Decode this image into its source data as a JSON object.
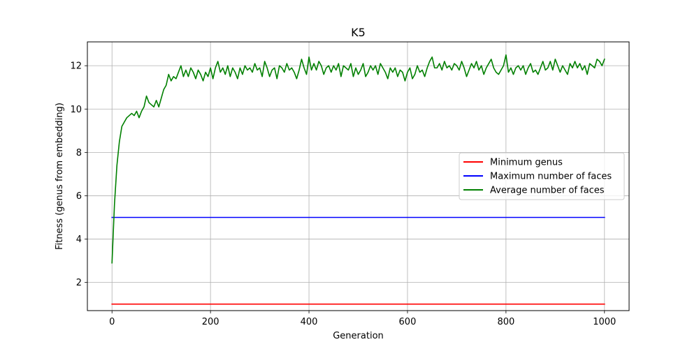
{
  "chart_data": {
    "type": "line",
    "title": "K5",
    "xlabel": "Generation",
    "ylabel": "Fitness (genus from embedding)",
    "xlim": [
      -50,
      1050
    ],
    "ylim": [
      0.7,
      13.1
    ],
    "xticks": [
      0,
      200,
      400,
      600,
      800,
      1000
    ],
    "yticks": [
      2,
      4,
      6,
      8,
      10,
      12
    ],
    "grid": true,
    "legend_position": "center-right",
    "series": [
      {
        "name": "Minimum genus",
        "color": "#ff0000",
        "x": [
          0,
          1000
        ],
        "y": [
          1,
          1
        ]
      },
      {
        "name": "Maximum number of faces",
        "color": "#0000ff",
        "x": [
          0,
          1000
        ],
        "y": [
          5,
          5
        ]
      },
      {
        "name": "Average number of faces",
        "color": "#008000",
        "x": [
          0,
          5,
          10,
          15,
          20,
          25,
          30,
          35,
          40,
          45,
          50,
          55,
          60,
          65,
          70,
          75,
          80,
          85,
          90,
          95,
          100,
          105,
          110,
          115,
          120,
          125,
          130,
          135,
          140,
          145,
          150,
          155,
          160,
          165,
          170,
          175,
          180,
          185,
          190,
          195,
          200,
          205,
          210,
          215,
          220,
          225,
          230,
          235,
          240,
          245,
          250,
          255,
          260,
          265,
          270,
          275,
          280,
          285,
          290,
          295,
          300,
          305,
          310,
          315,
          320,
          325,
          330,
          335,
          340,
          345,
          350,
          355,
          360,
          365,
          370,
          375,
          380,
          385,
          390,
          395,
          400,
          405,
          410,
          415,
          420,
          425,
          430,
          435,
          440,
          445,
          450,
          455,
          460,
          465,
          470,
          475,
          480,
          485,
          490,
          495,
          500,
          505,
          510,
          515,
          520,
          525,
          530,
          535,
          540,
          545,
          550,
          555,
          560,
          565,
          570,
          575,
          580,
          585,
          590,
          595,
          600,
          605,
          610,
          615,
          620,
          625,
          630,
          635,
          640,
          645,
          650,
          655,
          660,
          665,
          670,
          675,
          680,
          685,
          690,
          695,
          700,
          705,
          710,
          715,
          720,
          725,
          730,
          735,
          740,
          745,
          750,
          755,
          760,
          765,
          770,
          775,
          780,
          785,
          790,
          795,
          800,
          805,
          810,
          815,
          820,
          825,
          830,
          835,
          840,
          845,
          850,
          855,
          860,
          865,
          870,
          875,
          880,
          885,
          890,
          895,
          900,
          905,
          910,
          915,
          920,
          925,
          930,
          935,
          940,
          945,
          950,
          955,
          960,
          965,
          970,
          975,
          980,
          985,
          990,
          995,
          1000
        ],
        "y": [
          2.9,
          5.6,
          7.4,
          8.5,
          9.2,
          9.4,
          9.6,
          9.7,
          9.8,
          9.7,
          9.9,
          9.6,
          9.9,
          10.1,
          10.6,
          10.3,
          10.2,
          10.1,
          10.4,
          10.1,
          10.5,
          10.9,
          11.1,
          11.6,
          11.3,
          11.5,
          11.4,
          11.7,
          12.0,
          11.5,
          11.8,
          11.5,
          11.9,
          11.7,
          11.4,
          11.8,
          11.6,
          11.3,
          11.7,
          11.5,
          11.9,
          11.4,
          11.9,
          12.2,
          11.7,
          11.9,
          11.6,
          12.0,
          11.5,
          11.9,
          11.7,
          11.4,
          11.9,
          11.6,
          12.0,
          11.8,
          11.9,
          11.7,
          12.1,
          11.8,
          11.9,
          11.5,
          12.2,
          11.9,
          11.5,
          11.8,
          11.9,
          11.4,
          12.0,
          11.9,
          11.7,
          12.1,
          11.8,
          11.9,
          11.7,
          11.4,
          11.8,
          12.3,
          11.9,
          11.6,
          12.4,
          11.8,
          12.1,
          11.8,
          12.2,
          12.0,
          11.6,
          11.9,
          12.0,
          11.7,
          12.0,
          11.8,
          12.1,
          11.5,
          12.0,
          11.9,
          11.8,
          12.1,
          11.5,
          11.9,
          11.6,
          11.8,
          12.1,
          11.5,
          11.7,
          12.0,
          11.8,
          12.0,
          11.6,
          12.1,
          11.9,
          11.7,
          11.4,
          11.9,
          11.7,
          11.9,
          11.5,
          11.8,
          11.7,
          11.3,
          11.7,
          11.9,
          11.4,
          11.6,
          12.0,
          11.7,
          11.8,
          11.5,
          11.9,
          12.2,
          12.4,
          11.9,
          11.9,
          12.1,
          11.8,
          12.2,
          11.9,
          12.0,
          11.8,
          12.1,
          12.0,
          11.8,
          12.2,
          11.9,
          11.5,
          11.8,
          12.1,
          11.9,
          12.2,
          11.8,
          12.0,
          11.6,
          11.9,
          12.1,
          12.3,
          11.9,
          11.7,
          11.6,
          11.8,
          12.0,
          12.5,
          11.7,
          11.9,
          11.6,
          11.9,
          12.0,
          11.8,
          12.0,
          11.6,
          11.9,
          12.1,
          11.7,
          11.8,
          11.6,
          11.9,
          12.2,
          11.8,
          11.9,
          12.2,
          11.8,
          12.3,
          12.0,
          11.7,
          12.0,
          11.8,
          11.6,
          12.1,
          11.9,
          12.2,
          11.9,
          12.1,
          11.8,
          12.0,
          11.6,
          12.1,
          12.0,
          11.9,
          12.3,
          12.2,
          12.0,
          12.3
        ]
      }
    ]
  }
}
